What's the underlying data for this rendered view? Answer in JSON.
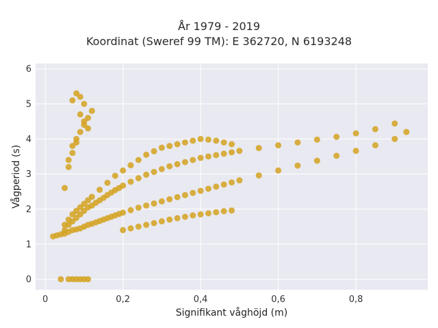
{
  "chart_data": {
    "type": "scatter",
    "title": "År 1979 - 2019",
    "subtitle": "Koordinat (Sweref 99 TM): E 362720, N 6193248",
    "xlabel": "Signifikant våghöjd (m)",
    "ylabel": "Vågperiod (s)",
    "xlim": [
      -0.025,
      0.985
    ],
    "ylim": [
      -0.3,
      6.15
    ],
    "xticks": [
      0,
      0.2,
      0.4,
      0.6,
      0.8
    ],
    "xtick_labels": [
      "0",
      "0,2",
      "0,4",
      "0,6",
      "0,8"
    ],
    "yticks": [
      0,
      1,
      2,
      3,
      4,
      5,
      6
    ],
    "ytick_labels": [
      "0",
      "1",
      "2",
      "3",
      "4",
      "5",
      "6"
    ],
    "grid": true,
    "marker_color": "#d4a220",
    "background_color": "#e9e9f1",
    "series": [
      {
        "x": [
          0.02,
          0.03,
          0.04,
          0.05,
          0.06,
          0.07,
          0.08,
          0.09,
          0.1,
          0.11,
          0.12,
          0.13,
          0.14,
          0.15,
          0.16,
          0.17,
          0.18,
          0.19,
          0.2,
          0.22,
          0.24,
          0.26,
          0.28,
          0.3,
          0.32,
          0.34,
          0.36,
          0.38,
          0.4,
          0.42,
          0.44,
          0.46,
          0.48,
          0.5,
          0.55,
          0.6,
          0.65,
          0.7,
          0.75,
          0.8,
          0.85,
          0.9,
          0.93,
          0.05,
          0.06,
          0.07,
          0.08,
          0.09,
          0.1,
          0.11,
          0.12,
          0.14,
          0.16,
          0.18,
          0.2,
          0.22,
          0.24,
          0.26,
          0.28,
          0.3,
          0.32,
          0.34,
          0.36,
          0.38,
          0.4,
          0.42,
          0.44,
          0.46,
          0.48,
          0.05,
          0.06,
          0.07,
          0.08,
          0.09,
          0.1,
          0.11,
          0.12,
          0.13,
          0.14,
          0.15,
          0.16,
          0.17,
          0.18,
          0.19,
          0.2,
          0.22,
          0.24,
          0.26,
          0.28,
          0.3,
          0.32,
          0.34,
          0.36,
          0.38,
          0.4,
          0.42,
          0.44,
          0.46,
          0.48,
          0.5,
          0.55,
          0.6,
          0.65,
          0.7,
          0.75,
          0.8,
          0.85,
          0.9,
          0.2,
          0.22,
          0.24,
          0.26,
          0.28,
          0.3,
          0.32,
          0.34,
          0.36,
          0.38,
          0.4,
          0.42,
          0.44,
          0.46,
          0.48,
          0.05,
          0.06,
          0.07,
          0.08,
          0.09,
          0.1,
          0.11,
          0.12,
          0.1,
          0.09,
          0.08,
          0.07,
          0.09,
          0.1,
          0.11,
          0.06,
          0.07,
          0.08,
          0.04,
          0.06,
          0.07,
          0.08,
          0.09,
          0.1,
          0.11
        ],
        "y": [
          1.22,
          1.25,
          1.28,
          1.3,
          1.35,
          1.4,
          1.42,
          1.45,
          1.5,
          1.55,
          1.58,
          1.62,
          1.66,
          1.7,
          1.74,
          1.78,
          1.82,
          1.86,
          1.9,
          1.97,
          2.04,
          2.1,
          2.16,
          2.22,
          2.28,
          2.34,
          2.4,
          2.46,
          2.52,
          2.58,
          2.64,
          2.7,
          2.76,
          2.82,
          2.96,
          3.1,
          3.24,
          3.38,
          3.52,
          3.66,
          3.82,
          4.0,
          4.2,
          1.55,
          1.7,
          1.85,
          1.95,
          2.05,
          2.15,
          2.25,
          2.35,
          2.55,
          2.75,
          2.95,
          3.1,
          3.25,
          3.4,
          3.55,
          3.65,
          3.75,
          3.8,
          3.85,
          3.9,
          3.95,
          4.0,
          3.98,
          3.95,
          3.9,
          3.85,
          1.4,
          1.55,
          1.65,
          1.75,
          1.85,
          1.95,
          2.05,
          2.1,
          2.18,
          2.25,
          2.32,
          2.4,
          2.47,
          2.54,
          2.6,
          2.67,
          2.78,
          2.88,
          2.98,
          3.06,
          3.14,
          3.22,
          3.28,
          3.34,
          3.4,
          3.46,
          3.5,
          3.54,
          3.58,
          3.62,
          3.66,
          3.74,
          3.82,
          3.9,
          3.98,
          4.06,
          4.16,
          4.28,
          4.44,
          1.4,
          1.45,
          1.5,
          1.55,
          1.6,
          1.65,
          1.7,
          1.74,
          1.78,
          1.82,
          1.85,
          1.88,
          1.91,
          1.94,
          1.96,
          2.6,
          3.2,
          3.6,
          3.9,
          4.2,
          4.4,
          4.6,
          4.8,
          5.0,
          5.2,
          5.3,
          5.1,
          4.7,
          4.5,
          4.3,
          3.4,
          3.8,
          4.0,
          0.0,
          0.0,
          0.0,
          0.0,
          0.0,
          0.0,
          0.0
        ]
      }
    ]
  }
}
